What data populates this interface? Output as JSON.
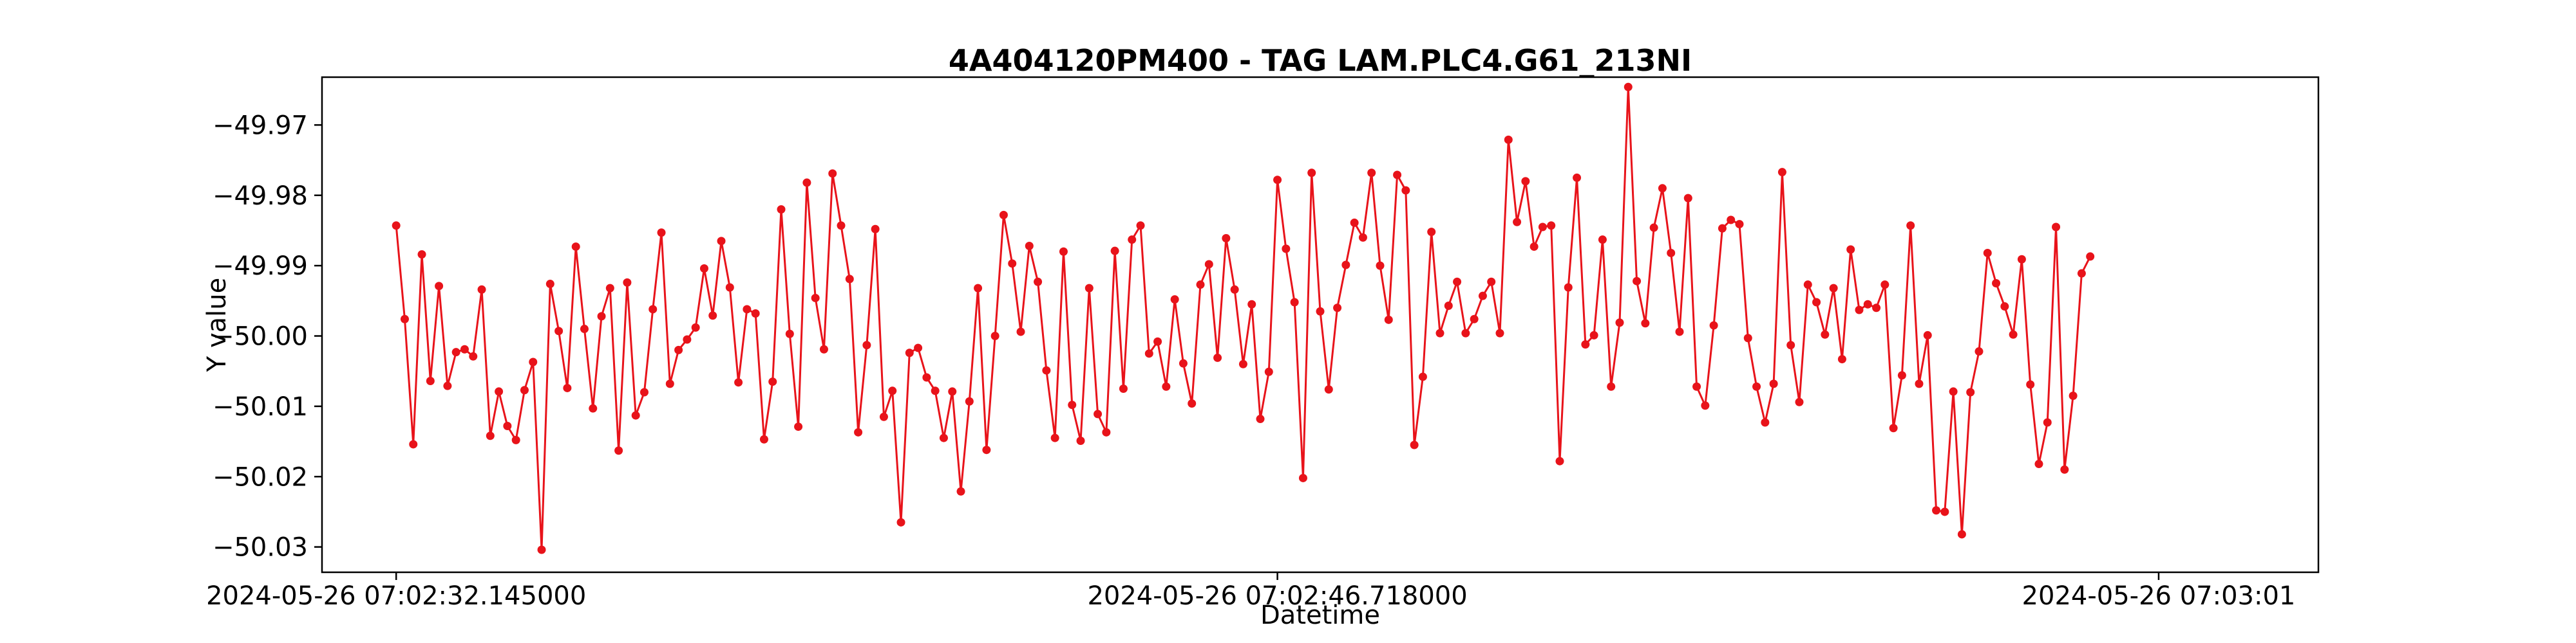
{
  "chart_data": {
    "type": "line",
    "title": "4A404120PM400 - TAG LAM.PLC4.G61_213NI",
    "xlabel": "Datetime",
    "ylabel": "Y value",
    "xlim": [
      -8.67,
      224.67
    ],
    "ylim": [
      -50.0336,
      -49.9632
    ],
    "grid": false,
    "legend": null,
    "line_color": "#e8131a",
    "x_ticks": [
      {
        "at": 0,
        "label": "2024-05-26 07:02:32.145000"
      },
      {
        "at": 103,
        "label": "2024-05-26 07:02:46.718000"
      },
      {
        "at": 206,
        "label": "2024-05-26 07:03:01"
      }
    ],
    "y_ticks": [
      {
        "value": -49.97,
        "label": "−49.97"
      },
      {
        "value": -49.98,
        "label": "−49.98"
      },
      {
        "value": -49.99,
        "label": "−49.99"
      },
      {
        "value": -50.0,
        "label": "−50.00"
      },
      {
        "value": -50.01,
        "label": "−50.01"
      },
      {
        "value": -50.02,
        "label": "−50.02"
      },
      {
        "value": -50.03,
        "label": "−50.03"
      }
    ],
    "series": [
      {
        "name": "Y value",
        "values": [
          -49.9843,
          -49.9976,
          -50.0154,
          -49.9884,
          -50.0064,
          -49.9929,
          -50.0071,
          -50.0023,
          -50.0019,
          -50.0029,
          -49.9934,
          -50.0142,
          -50.0079,
          -50.0128,
          -50.0148,
          -50.0077,
          -50.0037,
          -50.0304,
          -49.9926,
          -49.9993,
          -50.0074,
          -49.9873,
          -49.999,
          -50.0103,
          -49.9972,
          -49.9932,
          -50.0163,
          -49.9924,
          -50.0113,
          -50.008,
          -49.9962,
          -49.9853,
          -50.0068,
          -50.002,
          -50.0005,
          -49.9988,
          -49.9904,
          -49.9971,
          -49.9865,
          -49.9931,
          -50.0066,
          -49.9962,
          -49.9968,
          -50.0147,
          -50.0065,
          -49.982,
          -49.9997,
          -50.0129,
          -49.9782,
          -49.9946,
          -50.0019,
          -49.9769,
          -49.9843,
          -49.9919,
          -50.0137,
          -50.0013,
          -49.9848,
          -50.0115,
          -50.0078,
          -50.0265,
          -50.0024,
          -50.0017,
          -50.0059,
          -50.0078,
          -50.0145,
          -50.0079,
          -50.0221,
          -50.0093,
          -49.9932,
          -50.0162,
          -50.0,
          -49.9828,
          -49.9897,
          -49.9994,
          -49.9872,
          -49.9923,
          -50.0049,
          -50.0145,
          -49.988,
          -50.0098,
          -50.0149,
          -49.9932,
          -50.0111,
          -50.0137,
          -49.9879,
          -50.0075,
          -49.9863,
          -49.9843,
          -50.0025,
          -50.0008,
          -50.0072,
          -49.9948,
          -50.0039,
          -50.0096,
          -49.9927,
          -49.9898,
          -50.0031,
          -49.9861,
          -49.9934,
          -50.004,
          -49.9955,
          -50.0118,
          -50.0051,
          -49.9778,
          -49.9876,
          -49.9952,
          -50.0202,
          -49.9768,
          -49.9965,
          -50.0076,
          -49.996,
          -49.9899,
          -49.9839,
          -49.986,
          -49.9768,
          -49.99,
          -49.9977,
          -49.9771,
          -49.9793,
          -50.0155,
          -50.0058,
          -49.9852,
          -49.9996,
          -49.9957,
          -49.9923,
          -49.9996,
          -49.9976,
          -49.9943,
          -49.9923,
          -49.9996,
          -49.9721,
          -49.9838,
          -49.978,
          -49.9873,
          -49.9845,
          -49.9843,
          -50.0178,
          -49.9931,
          -49.9775,
          -50.0012,
          -49.9999,
          -49.9863,
          -50.0072,
          -49.9981,
          -49.9646,
          -49.9922,
          -49.9982,
          -49.9846,
          -49.979,
          -49.9882,
          -49.9994,
          -49.9804,
          -50.0072,
          -50.0099,
          -49.9985,
          -49.9847,
          -49.9835,
          -49.9841,
          -50.0003,
          -50.0072,
          -50.0123,
          -50.0068,
          -49.9767,
          -50.0013,
          -50.0094,
          -49.9927,
          -49.9952,
          -49.9998,
          -49.9932,
          -50.0033,
          -49.9877,
          -49.9963,
          -49.9955,
          -49.996,
          -49.9927,
          -50.0131,
          -50.0056,
          -49.9843,
          -50.0068,
          -49.9999,
          -50.0248,
          -50.025,
          -50.0079,
          -50.0282,
          -50.008,
          -50.0022,
          -49.9882,
          -49.9925,
          -49.9958,
          -49.9998,
          -49.9891,
          -50.0069,
          -50.0182,
          -50.0123,
          -49.9845,
          -50.019,
          -50.0085,
          -49.9911,
          -49.9887
        ]
      }
    ]
  }
}
